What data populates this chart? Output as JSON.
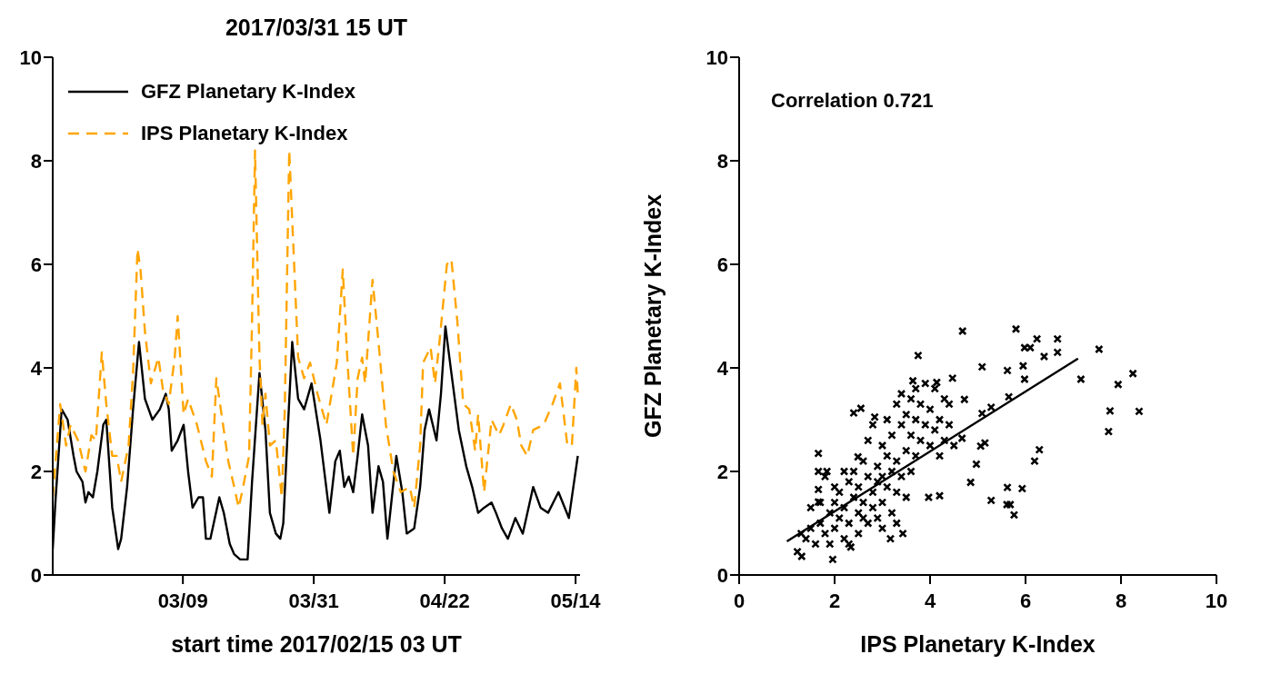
{
  "chart_data": [
    {
      "type": "line",
      "title": "2017/03/31 15 UT",
      "xlabel": "start time 2017/02/15 03 UT",
      "xlim": [
        "2017-02-15T03:00",
        "2017-05-14T18:00"
      ],
      "xticks": [
        {
          "value": "2017-03-09",
          "label": "03/09"
        },
        {
          "value": "2017-03-31",
          "label": "03/31"
        },
        {
          "value": "2017-04-22",
          "label": "04/22"
        },
        {
          "value": "2017-05-14",
          "label": "05/14"
        }
      ],
      "ylim": [
        0,
        10
      ],
      "yticks": [
        0,
        2,
        4,
        6,
        8,
        10
      ],
      "grid": false,
      "legend": "top left",
      "series": [
        {
          "name": "GFZ Planetary K-Index",
          "color": "#000000",
          "line_style": "solid",
          "x": [
            "2017-02-15T03:00",
            "2017-02-15T15:00",
            "2017-02-16T15:00",
            "2017-02-17T15:00",
            "2017-02-18T15:00",
            "2017-02-19T03:00",
            "2017-02-20T03:00",
            "2017-02-20T15:00",
            "2017-02-21T03:00",
            "2017-02-21T21:00",
            "2017-02-22T15:00",
            "2017-02-23T15:00",
            "2017-02-24T03:00",
            "2017-02-25T03:00",
            "2017-02-26T03:00",
            "2017-02-26T15:00",
            "2017-02-27T15:00",
            "2017-02-28T15:00",
            "2017-03-01T15:00",
            "2017-03-02T15:00",
            "2017-03-03T21:00",
            "2017-03-05T03:00",
            "2017-03-06T03:00",
            "2017-03-06T15:00",
            "2017-03-07T03:00",
            "2017-03-08T03:00",
            "2017-03-09T03:00",
            "2017-03-09T21:00",
            "2017-03-10T15:00",
            "2017-03-11T15:00",
            "2017-03-12T09:00",
            "2017-03-12T21:00",
            "2017-03-13T15:00",
            "2017-03-14T09:00",
            "2017-03-15T03:00",
            "2017-03-15T21:00",
            "2017-03-16T21:00",
            "2017-03-17T15:00",
            "2017-03-18T15:00",
            "2017-03-19T21:00",
            "2017-03-20T15:00",
            "2017-03-21T21:00",
            "2017-03-22T21:00",
            "2017-03-23T15:00",
            "2017-03-24T15:00",
            "2017-03-25T09:00",
            "2017-03-25T21:00",
            "2017-03-26T15:00",
            "2017-03-27T09:00",
            "2017-03-28T09:00",
            "2017-03-29T09:00",
            "2017-03-30T15:00",
            "2017-04-01T03:00",
            "2017-04-02T15:00",
            "2017-04-03T15:00",
            "2017-04-04T09:00",
            "2017-04-05T03:00",
            "2017-04-05T21:00",
            "2017-04-06T15:00",
            "2017-04-07T09:00",
            "2017-04-08T03:00",
            "2017-04-09T03:00",
            "2017-04-09T21:00",
            "2017-04-10T21:00",
            "2017-04-11T15:00",
            "2017-04-12T09:00",
            "2017-04-13T21:00",
            "2017-04-14T21:00",
            "2017-04-15T15:00",
            "2017-04-16T21:00",
            "2017-04-17T21:00",
            "2017-04-18T15:00",
            "2017-04-19T09:00",
            "2017-04-20T15:00",
            "2017-04-21T09:00",
            "2017-04-22T03:00",
            "2017-04-23T03:00",
            "2017-04-24T09:00",
            "2017-04-25T15:00",
            "2017-04-26T15:00",
            "2017-04-27T15:00",
            "2017-04-28T15:00",
            "2017-04-29T21:00",
            "2017-04-30T15:00",
            "2017-05-01T15:00",
            "2017-05-02T15:00",
            "2017-05-03T21:00",
            "2017-05-05T03:00",
            "2017-05-06T21:00",
            "2017-05-08T03:00",
            "2017-05-09T09:00",
            "2017-05-11T03:00",
            "2017-05-12T21:00",
            "2017-05-13T21:00",
            "2017-05-14T09:00"
          ],
          "values": [
            0.5,
            1.5,
            3.2,
            3.0,
            2.3,
            2.0,
            1.8,
            1.4,
            1.6,
            1.5,
            2.0,
            2.9,
            3.0,
            1.3,
            0.5,
            0.7,
            1.7,
            3.2,
            4.5,
            3.4,
            3.0,
            3.2,
            3.5,
            3.2,
            2.4,
            2.6,
            2.9,
            2.0,
            1.3,
            1.5,
            1.5,
            0.7,
            0.7,
            1.1,
            1.5,
            1.2,
            0.6,
            0.4,
            0.3,
            0.3,
            1.8,
            3.9,
            2.8,
            1.2,
            0.8,
            0.7,
            1.0,
            2.8,
            4.5,
            3.4,
            3.2,
            3.7,
            2.6,
            1.2,
            2.2,
            2.4,
            1.7,
            1.9,
            1.6,
            2.3,
            3.1,
            2.5,
            1.2,
            2.1,
            1.8,
            0.7,
            2.3,
            1.6,
            0.8,
            0.9,
            1.7,
            2.8,
            3.2,
            2.6,
            3.5,
            4.8,
            3.9,
            2.8,
            2.1,
            1.7,
            1.2,
            1.3,
            1.4,
            1.2,
            0.9,
            0.7,
            1.1,
            0.8,
            1.7,
            1.3,
            1.2,
            1.6,
            1.1,
            1.9,
            2.3
          ]
        },
        {
          "name": "IPS Planetary K-Index",
          "color": "#ffa500",
          "line_style": "dashed",
          "x": [
            "2017-02-15T03:00",
            "2017-02-16T09:00",
            "2017-02-17T09:00",
            "2017-02-18T03:00",
            "2017-02-19T09:00",
            "2017-02-20T15:00",
            "2017-02-21T15:00",
            "2017-02-22T09:00",
            "2017-02-23T09:00",
            "2017-02-24T03:00",
            "2017-02-25T03:00",
            "2017-02-25T21:00",
            "2017-02-26T15:00",
            "2017-02-27T21:00",
            "2017-02-28T15:00",
            "2017-03-01T09:00",
            "2017-03-01T21:00",
            "2017-03-02T15:00",
            "2017-03-03T15:00",
            "2017-03-04T21:00",
            "2017-03-05T15:00",
            "2017-03-06T15:00",
            "2017-03-07T15:00",
            "2017-03-08T03:00",
            "2017-03-09T03:00",
            "2017-03-09T21:00",
            "2017-03-11T09:00",
            "2017-03-12T21:00",
            "2017-03-13T21:00",
            "2017-03-14T15:00",
            "2017-03-15T09:00",
            "2017-03-16T15:00",
            "2017-03-17T15:00",
            "2017-03-18T09:00",
            "2017-03-19T03:00",
            "2017-03-20T03:00",
            "2017-03-20T15:00",
            "2017-03-21T03:00",
            "2017-03-21T21:00",
            "2017-03-22T09:00",
            "2017-03-22T21:00",
            "2017-03-23T15:00",
            "2017-03-24T15:00",
            "2017-03-25T15:00",
            "2017-03-26T03:00",
            "2017-03-26T21:00",
            "2017-03-27T15:00",
            "2017-03-28T09:00",
            "2017-03-29T09:00",
            "2017-03-30T09:00",
            "2017-03-31T15:00",
            "2017-04-02T03:00",
            "2017-04-03T21:00",
            "2017-04-04T21:00",
            "2017-04-05T15:00",
            "2017-04-06T15:00",
            "2017-04-07T09:00",
            "2017-04-08T03:00",
            "2017-04-08T15:00",
            "2017-04-09T21:00",
            "2017-04-10T21:00",
            "2017-04-12T03:00",
            "2017-04-13T09:00",
            "2017-04-14T15:00",
            "2017-04-16T03:00",
            "2017-04-16T21:00",
            "2017-04-17T21:00",
            "2017-04-18T09:00",
            "2017-04-19T15:00",
            "2017-04-20T09:00",
            "2017-04-21T03:00",
            "2017-04-22T09:00",
            "2017-04-23T03:00",
            "2017-04-24T03:00",
            "2017-04-25T03:00",
            "2017-04-26T03:00",
            "2017-04-27T03:00",
            "2017-04-27T15:00",
            "2017-04-28T15:00",
            "2017-04-29T21:00",
            "2017-05-01T03:00",
            "2017-05-01T21:00",
            "2017-05-03T03:00",
            "2017-05-04T03:00",
            "2017-05-04T21:00",
            "2017-05-05T21:00",
            "2017-05-06T21:00",
            "2017-05-08T15:00",
            "2017-05-10T03:00",
            "2017-05-11T09:00",
            "2017-05-12T15:00",
            "2017-05-13T09:00",
            "2017-05-14T03:00",
            "2017-05-14T09:00"
          ],
          "values": [
            1.5,
            3.3,
            2.5,
            2.9,
            2.6,
            2.0,
            2.7,
            2.6,
            4.3,
            3.3,
            2.3,
            2.3,
            1.8,
            2.5,
            3.9,
            6.3,
            5.9,
            4.7,
            3.7,
            4.2,
            3.6,
            3.3,
            4.2,
            5.0,
            3.1,
            3.4,
            2.9,
            2.2,
            1.9,
            3.8,
            3.2,
            2.2,
            1.7,
            1.3,
            1.7,
            2.3,
            4.9,
            8.2,
            4.2,
            2.9,
            3.5,
            2.5,
            2.6,
            1.5,
            3.2,
            8.2,
            6.2,
            4.2,
            3.8,
            4.1,
            3.5,
            2.9,
            4.1,
            5.9,
            4.2,
            2.3,
            3.8,
            4.2,
            3.7,
            5.7,
            4.5,
            2.9,
            2.0,
            1.6,
            1.7,
            1.3,
            2.5,
            4.1,
            4.4,
            3.7,
            4.5,
            6.0,
            6.1,
            4.9,
            3.3,
            3.2,
            2.4,
            3.1,
            1.6,
            3.0,
            2.7,
            2.9,
            3.3,
            3.0,
            2.5,
            2.3,
            2.8,
            2.9,
            3.3,
            3.7,
            2.5,
            2.5,
            4.0,
            3.5
          ]
        }
      ]
    },
    {
      "type": "scatter",
      "xlabel": "IPS Planetary K-Index",
      "ylabel": "GFZ Planetary K-Index",
      "xlim": [
        0,
        10
      ],
      "xticks": [
        0,
        2,
        4,
        6,
        8,
        10
      ],
      "ylim": [
        0,
        10
      ],
      "yticks": [
        0,
        2,
        4,
        6,
        8,
        10
      ],
      "grid": false,
      "legend": false,
      "annotations": [
        "Correlation 0.721"
      ],
      "series": [
        {
          "type": "scatter",
          "color": "#000000",
          "marker": "cross",
          "x": [
            4.68,
            5.8,
            6.24,
            6.67,
            6.67,
            6.39,
            7.54,
            7.16,
            8.25,
            7.94,
            7.77,
            8.38,
            7.74,
            5.98,
            6.1,
            5.95,
            5.98,
            5.62,
            5.65,
            5.09,
            5.28,
            5.09,
            5.15,
            5.06,
            4.97,
            6.29,
            6.19,
            5.93,
            5.62,
            5.61,
            5.68,
            5.76,
            5.28,
            4.85,
            4.67,
            4.72,
            4.47,
            4.2,
            3.97,
            3.75,
            3.43,
            3.17,
            2.34,
            1.96,
            1.31,
            1.22,
            1.66,
            1.66,
            1.84,
            1.66,
            1.66,
            2.4,
            2.55,
            2.84,
            2.49,
            3.64,
            4.14,
            1.4,
            1.5,
            1.6,
            1.7,
            1.8,
            1.9,
            1.9,
            2.0,
            2.0,
            2.1,
            2.1,
            2.2,
            2.2,
            2.3,
            2.3,
            2.4,
            2.4,
            2.5,
            2.5,
            2.5,
            2.6,
            2.6,
            2.7,
            2.7,
            2.7,
            2.8,
            2.8,
            2.8,
            2.9,
            2.9,
            2.9,
            3.0,
            3.0,
            3.0,
            3.1,
            3.1,
            3.1,
            3.2,
            3.2,
            3.2,
            3.3,
            3.3,
            3.3,
            3.4,
            3.4,
            3.4,
            3.5,
            3.5,
            3.5,
            3.6,
            3.6,
            3.6,
            3.7,
            3.7,
            3.7,
            3.8,
            3.8,
            3.9,
            3.9,
            4.0,
            4.0,
            4.1,
            4.1,
            4.2,
            4.2,
            4.3,
            4.3,
            4.4,
            4.4,
            4.5,
            2.0,
            1.7,
            1.5,
            1.3,
            2.2,
            2.6,
            2.3,
            3.0,
            3.3,
            1.8
          ],
          "values": [
            4.71,
            4.75,
            4.56,
            4.56,
            4.3,
            4.22,
            4.36,
            3.78,
            3.89,
            3.68,
            3.17,
            3.16,
            2.77,
            4.39,
            4.39,
            4.04,
            3.78,
            3.95,
            3.44,
            4.02,
            3.24,
            3.12,
            2.55,
            2.49,
            2.14,
            2.42,
            2.2,
            1.67,
            1.69,
            1.36,
            1.36,
            1.16,
            1.44,
            1.79,
            2.64,
            3.39,
            3.8,
            1.53,
            1.5,
            4.24,
            0.8,
            0.7,
            0.54,
            0.3,
            0.36,
            0.45,
            2.35,
            2.0,
            2.0,
            1.65,
            1.41,
            3.13,
            3.22,
            3.05,
            2.28,
            3.75,
            3.72,
            0.7,
            0.9,
            0.6,
            1.0,
            0.8,
            1.2,
            0.6,
            1.4,
            0.9,
            1.6,
            1.1,
            0.7,
            1.3,
            1.8,
            1.0,
            1.5,
            2.0,
            1.2,
            0.8,
            1.7,
            2.2,
            1.4,
            1.0,
            1.9,
            2.6,
            1.3,
            1.6,
            2.9,
            1.1,
            2.1,
            1.8,
            1.4,
            2.5,
            0.9,
            1.7,
            2.3,
            3.0,
            1.2,
            2.0,
            2.7,
            1.6,
            3.3,
            2.2,
            1.9,
            2.9,
            3.5,
            2.4,
            1.5,
            3.1,
            2.7,
            3.4,
            2.0,
            3.0,
            2.3,
            3.6,
            2.6,
            3.3,
            2.9,
            3.7,
            2.5,
            3.2,
            2.8,
            3.6,
            2.3,
            3.0,
            3.4,
            2.6,
            2.9,
            3.3,
            2.5,
            1.7,
            1.4,
            1.3,
            0.8,
            2.0,
            1.1,
            0.6,
            1.9,
            1.0,
            1.9
          ]
        },
        {
          "type": "line",
          "color": "#000000",
          "x": [
            1.0,
            7.1
          ],
          "values": [
            0.65,
            4.18
          ]
        }
      ]
    }
  ]
}
